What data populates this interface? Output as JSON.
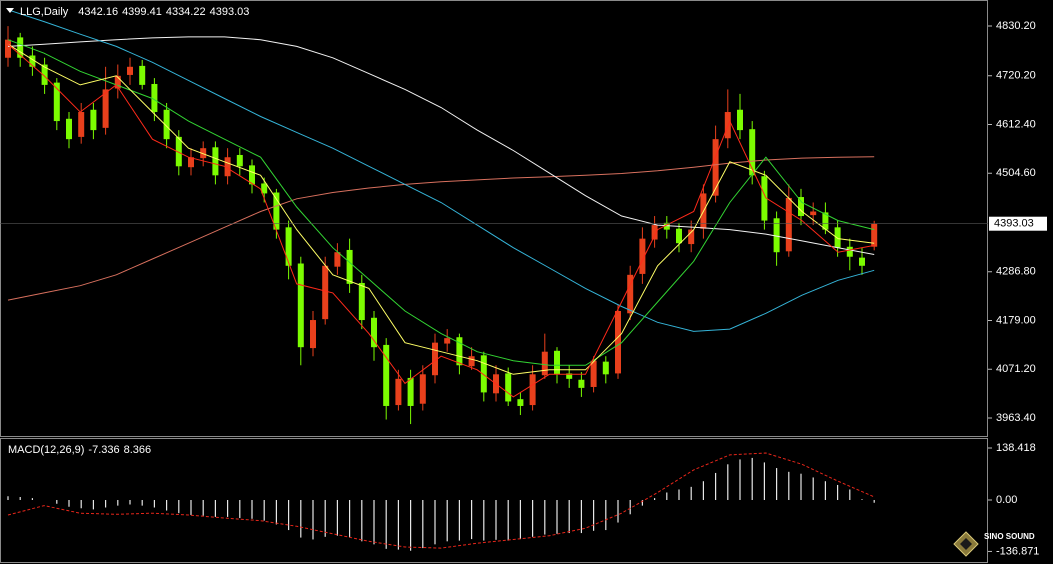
{
  "chart_data": [
    {
      "type": "candlestick",
      "title": "LLG,Daily",
      "up_color": "#e8401c",
      "down_color": "#7cfc00",
      "open": [
        4760,
        4805,
        4765,
        4745,
        4705,
        4625,
        4585,
        4645,
        4605,
        4692,
        4722,
        4742,
        4702,
        4645,
        4585,
        4518,
        4538,
        4562,
        4498,
        4545,
        4522,
        4482,
        4462,
        4385,
        4305,
        4118,
        4182,
        4298,
        4335,
        4262,
        4185,
        4125,
        3992,
        4052,
        3995,
        4058,
        4128,
        4142,
        4078,
        4102,
        4018,
        4062,
        4005,
        3992,
        4058,
        4112,
        4062,
        4048,
        4032,
        4088,
        4062,
        4195,
        4282,
        4358,
        4395,
        4382,
        4348,
        4382,
        4455,
        4582,
        4645,
        4602,
        4498,
        4405,
        4332,
        4452,
        4412,
        4418,
        4385,
        4342,
        4318,
        4342.16
      ],
      "high": [
        4830,
        4815,
        4785,
        4760,
        4715,
        4640,
        4660,
        4660,
        4740,
        4745,
        4760,
        4755,
        4715,
        4660,
        4600,
        4560,
        4575,
        4575,
        4560,
        4560,
        4535,
        4495,
        4470,
        4400,
        4320,
        4200,
        4320,
        4350,
        4360,
        4280,
        4200,
        4140,
        4070,
        4070,
        4080,
        4150,
        4160,
        4150,
        4120,
        4110,
        4080,
        4075,
        4020,
        4080,
        4150,
        4120,
        4080,
        4065,
        4100,
        4100,
        4215,
        4300,
        4385,
        4410,
        4410,
        4395,
        4400,
        4480,
        4610,
        4690,
        4680,
        4620,
        4510,
        4420,
        4480,
        4470,
        4440,
        4440,
        4400,
        4360,
        4340,
        4399.41
      ],
      "low": [
        4740,
        4740,
        4720,
        4680,
        4600,
        4560,
        4570,
        4580,
        4590,
        4670,
        4700,
        4690,
        4620,
        4560,
        4500,
        4500,
        4520,
        4480,
        4480,
        4500,
        4460,
        4440,
        4360,
        4270,
        4080,
        4100,
        4170,
        4280,
        4240,
        4160,
        4090,
        3960,
        3980,
        3950,
        3980,
        4040,
        4110,
        4060,
        4070,
        4000,
        4000,
        3990,
        3970,
        3980,
        4050,
        4040,
        4030,
        4010,
        4020,
        4040,
        4050,
        4180,
        4260,
        4340,
        4360,
        4330,
        4330,
        4360,
        4440,
        4560,
        4580,
        4480,
        4380,
        4300,
        4320,
        4390,
        4390,
        4370,
        4320,
        4290,
        4280,
        4334.22
      ],
      "close": [
        4800,
        4760,
        4740,
        4700,
        4620,
        4580,
        4640,
        4600,
        4690,
        4720,
        4740,
        4700,
        4640,
        4580,
        4520,
        4540,
        4560,
        4500,
        4540,
        4520,
        4480,
        4460,
        4380,
        4300,
        4120,
        4180,
        4300,
        4330,
        4260,
        4180,
        4120,
        3990,
        4050,
        3990,
        4060,
        4130,
        4140,
        4080,
        4100,
        4020,
        4060,
        4000,
        3990,
        4060,
        4110,
        4060,
        4050,
        4030,
        4090,
        4060,
        4200,
        4280,
        4360,
        4390,
        4380,
        4350,
        4380,
        4460,
        4580,
        4640,
        4600,
        4500,
        4400,
        4330,
        4450,
        4410,
        4420,
        4380,
        4340,
        4320,
        4300,
        4393.03
      ],
      "lines": [
        {
          "color": "#d8705e",
          "values": [
            4224,
            4240,
            4256,
            4280,
            4315,
            4350,
            4385,
            4420,
            4448,
            4462,
            4472,
            4480,
            4486,
            4490,
            4494,
            4497,
            4500,
            4504,
            4510,
            4518,
            4527,
            4534,
            4538,
            4540,
            4541
          ]
        },
        {
          "color": "#f2f2f2",
          "values": [
            4785,
            4790,
            4795,
            4800,
            4804,
            4806,
            4806,
            4800,
            4785,
            4760,
            4725,
            4690,
            4650,
            4600,
            4555,
            4505,
            4455,
            4410,
            4390,
            4385,
            4380,
            4370,
            4355,
            4340,
            4325
          ]
        },
        {
          "color": "#35b4d8",
          "values": [
            4866,
            4840,
            4812,
            4785,
            4750,
            4710,
            4670,
            4630,
            4595,
            4560,
            4520,
            4480,
            4440,
            4390,
            4340,
            4295,
            4250,
            4210,
            4175,
            4155,
            4160,
            4195,
            4235,
            4268,
            4290
          ]
        },
        {
          "color": "#33d433",
          "values": [
            4800,
            4770,
            4730,
            4700,
            4670,
            4620,
            4580,
            4540,
            4430,
            4340,
            4270,
            4200,
            4150,
            4110,
            4090,
            4080,
            4080,
            4130,
            4220,
            4310,
            4440,
            4540,
            4440,
            4400,
            4380
          ]
        },
        {
          "color": "#ffff66",
          "values": [
            4790,
            4740,
            4700,
            4720,
            4640,
            4560,
            4530,
            4500,
            4380,
            4280,
            4250,
            4130,
            4110,
            4090,
            4060,
            4070,
            4070,
            4150,
            4300,
            4380,
            4530,
            4500,
            4420,
            4360,
            4350
          ]
        },
        {
          "color": "#ff2a1a",
          "values": [
            4790,
            4720,
            4640,
            4700,
            4580,
            4540,
            4520,
            4470,
            4260,
            4240,
            4150,
            4040,
            4100,
            4070,
            4010,
            4060,
            4060,
            4220,
            4380,
            4420,
            4620,
            4450,
            4400,
            4330,
            4345
          ]
        }
      ],
      "ylim": [
        3923.6,
        4887.7
      ],
      "yticks": [
        {
          "value": 4830.2,
          "label": "4830.20"
        },
        {
          "value": 4720.2,
          "label": "4720.20"
        },
        {
          "value": 4612.4,
          "label": "4612.40"
        },
        {
          "value": 4504.6,
          "label": "4504.60"
        },
        {
          "value": 4286.8,
          "label": "4286.80"
        },
        {
          "value": 4179,
          "label": "4179.00"
        },
        {
          "value": 4071.2,
          "label": "4071.20"
        },
        {
          "value": 3963.4,
          "label": "3963.40"
        }
      ]
    },
    {
      "type": "macd",
      "title": "MACD(12,26,9)",
      "histogram": {
        "color": "#e6e6e6",
        "values": [
          10,
          8,
          5,
          0,
          -10,
          -18,
          -22,
          -25,
          -20,
          -15,
          -12,
          -15,
          -20,
          -28,
          -35,
          -40,
          -42,
          -45,
          -45,
          -48,
          -50,
          -55,
          -65,
          -80,
          -100,
          -105,
          -98,
          -95,
          -100,
          -110,
          -118,
          -130,
          -132,
          -135,
          -128,
          -118,
          -110,
          -108,
          -104,
          -108,
          -106,
          -108,
          -104,
          -98,
          -92,
          -90,
          -88,
          -88,
          -82,
          -80,
          -60,
          -38,
          -15,
          5,
          20,
          28,
          35,
          50,
          72,
          95,
          108,
          112,
          100,
          85,
          75,
          70,
          60,
          50,
          40,
          28,
          2,
          -7.336
        ]
      },
      "signal": {
        "color": "#e8261a",
        "values": [
          -40,
          -15,
          -35,
          -38,
          -35,
          -40,
          -48,
          -55,
          -70,
          -90,
          -110,
          -125,
          -128,
          -115,
          -105,
          -95,
          -75,
          -35,
          20,
          80,
          120,
          125,
          95,
          50,
          8.366
        ]
      },
      "ylim": [
        -165,
        165
      ],
      "yticks": [
        138.418,
        {
          "value": 0,
          "label": "0.00"
        },
        -136.871
      ]
    }
  ],
  "watermark": "SINO SOUND"
}
